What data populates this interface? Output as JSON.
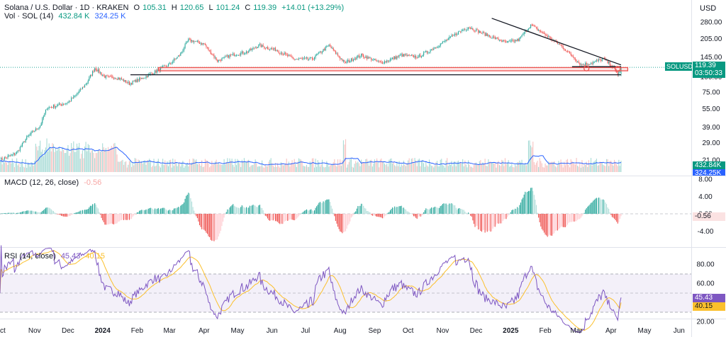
{
  "header": {
    "symbol_title": "Solana / U.S. Dollar · 1D · KRAKEN",
    "o_label": "O",
    "o_value": "105.31",
    "h_label": "H",
    "h_value": "120.65",
    "l_label": "L",
    "l_value": "101.24",
    "c_label": "C",
    "c_value": "119.39",
    "change": "+14.01 (+13.29%)",
    "vol_label": "Vol · SOL (14)",
    "vol_value": "432.84 K",
    "vol_ma_value": "324.25 K"
  },
  "currency": "USD",
  "badges": {
    "symbol": "SOLUSD",
    "price": "119.39",
    "countdown": "03:50:33",
    "vol": "432.84K",
    "vol_ma": "324.25K",
    "macd": "-0.56",
    "rsi": "45.43",
    "rsi_ma": "40.15"
  },
  "macd_legend": {
    "label": "MACD (12, 26, close)",
    "value": "-0.56"
  },
  "rsi_legend": {
    "label": "RSI (14, close)",
    "value": "45.43",
    "ma_value": "40.15"
  },
  "colors": {
    "up": "#26a69a",
    "down": "#ef5350",
    "vol_ma": "#2962ff",
    "rsi": "#7e57c2",
    "rsi_ma": "#fbc02d",
    "accent": "#089981"
  },
  "chart_data": [
    {
      "type": "candlestick",
      "title": "Solana / U.S. Dollar · 1D · KRAKEN",
      "y_scale": "log",
      "yticks": [
        280.0,
        205.0,
        145.0,
        100.0,
        75.0,
        55.0,
        39.0,
        29.0,
        21.0
      ],
      "x_tick_labels": [
        "Oct",
        "Nov",
        "Dec",
        "2024",
        "Feb",
        "Mar",
        "Apr",
        "May",
        "Jun",
        "Jul",
        "Aug",
        "Sep",
        "Oct",
        "Nov",
        "Dec",
        "2025",
        "Feb",
        "Mar",
        "Apr",
        "May",
        "Jun"
      ],
      "close_path": [
        [
          "2023-10-01",
          21
        ],
        [
          "2023-10-16",
          24
        ],
        [
          "2023-10-25",
          32
        ],
        [
          "2023-11-06",
          40
        ],
        [
          "2023-11-12",
          56
        ],
        [
          "2023-11-20",
          58
        ],
        [
          "2023-12-01",
          62
        ],
        [
          "2023-12-10",
          74
        ],
        [
          "2023-12-18",
          90
        ],
        [
          "2023-12-25",
          118
        ],
        [
          "2024-01-03",
          100
        ],
        [
          "2024-01-15",
          98
        ],
        [
          "2024-01-25",
          88
        ],
        [
          "2024-02-05",
          97
        ],
        [
          "2024-02-17",
          110
        ],
        [
          "2024-02-29",
          125
        ],
        [
          "2024-03-10",
          150
        ],
        [
          "2024-03-18",
          200
        ],
        [
          "2024-04-01",
          185
        ],
        [
          "2024-04-13",
          135
        ],
        [
          "2024-04-25",
          150
        ],
        [
          "2024-05-10",
          160
        ],
        [
          "2024-05-20",
          180
        ],
        [
          "2024-06-05",
          165
        ],
        [
          "2024-06-20",
          140
        ],
        [
          "2024-07-07",
          140
        ],
        [
          "2024-07-22",
          180
        ],
        [
          "2024-08-05",
          130
        ],
        [
          "2024-08-20",
          150
        ],
        [
          "2024-09-07",
          130
        ],
        [
          "2024-09-25",
          150
        ],
        [
          "2024-10-10",
          145
        ],
        [
          "2024-10-28",
          180
        ],
        [
          "2024-11-15",
          230
        ],
        [
          "2024-11-24",
          255
        ],
        [
          "2024-12-10",
          220
        ],
        [
          "2024-12-28",
          190
        ],
        [
          "2025-01-08",
          200
        ],
        [
          "2025-01-19",
          265
        ],
        [
          "2025-02-01",
          220
        ],
        [
          "2025-02-15",
          180
        ],
        [
          "2025-02-28",
          140
        ],
        [
          "2025-03-05",
          125
        ],
        [
          "2025-03-15",
          130
        ],
        [
          "2025-03-25",
          140
        ],
        [
          "2025-04-01",
          125
        ],
        [
          "2025-04-07",
          105
        ],
        [
          "2025-04-10",
          119.39
        ]
      ],
      "last_price": 119.39,
      "annotations": {
        "descending_trendline": [
          [
            "2024-12-15",
            300
          ],
          [
            "2025-04-10",
            125
          ]
        ],
        "support_line": [
          [
            "2024-01-26",
            104
          ],
          [
            "2025-04-10",
            104
          ]
        ],
        "support_zone": {
          "from": "2024-02-20",
          "to": "2025-04-16",
          "low": 112,
          "high": 119
        },
        "inner_line": {
          "from": "2025-02-25",
          "to": "2025-04-10",
          "value": 121
        },
        "circles": [
          [
            "2025-03-10",
            117
          ],
          [
            "2025-04-07",
            116
          ]
        ]
      }
    },
    {
      "type": "bar",
      "title": "Vol · SOL (14)",
      "last_value": "432.84K",
      "ma_last_value": "324.25K"
    },
    {
      "type": "bar",
      "title": "MACD (12, 26, close)",
      "yticks": [
        8.0,
        4.0,
        0.0,
        -4.0
      ],
      "last_value": -0.56
    },
    {
      "type": "line",
      "title": "RSI (14, close)",
      "yticks": [
        80.0,
        60.0,
        40.0,
        20.0
      ],
      "bands": {
        "upper": 70,
        "middle": 50,
        "lower": 30
      },
      "rsi_last": 45.43,
      "rsi_ma_last": 40.15
    }
  ]
}
